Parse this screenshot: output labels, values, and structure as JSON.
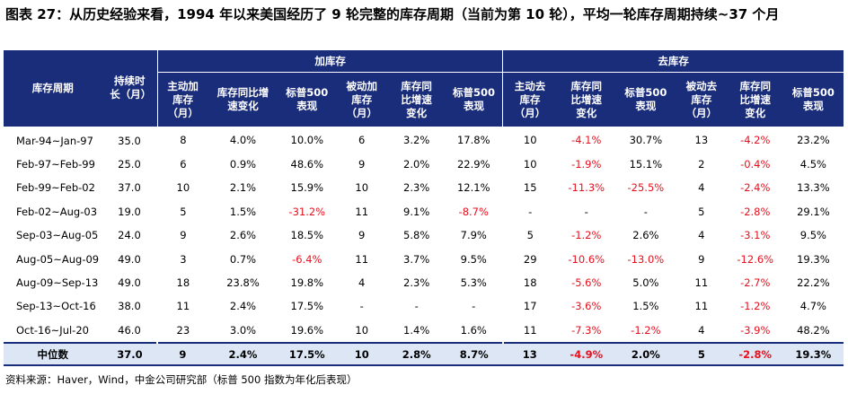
{
  "title": "图表 27：从历史经验来看，1994 年以来美国经历了 9 轮完整的库存周期（当前为第 10 轮），平均一轮库存周期持续~37 个月",
  "table": {
    "group_headers": {
      "add_inventory": "加库存",
      "de_inventory": "去库存"
    },
    "columns": {
      "period": "库存周期",
      "duration": "持续时长（月）",
      "active_add": "主动加库存（月）",
      "add_yoy": "库存同比增速变化",
      "add_sp1": "标普500表现",
      "passive_add": "被动加库存（月）",
      "padd_yoy": "库存同比增速变化",
      "add_sp2": "标普500表现",
      "active_de": "主动去库存（月）",
      "de_yoy": "库存同比增速变化",
      "de_sp1": "标普500表现",
      "passive_de": "被动去库存（月）",
      "pde_yoy": "库存同比增速变化",
      "de_sp2": "标普500表现"
    },
    "rows": [
      [
        "Mar-94~Jan-97",
        "35.0",
        "8",
        "4.0%",
        "10.0%",
        "6",
        "3.2%",
        "17.8%",
        "10",
        "-4.1%",
        "30.7%",
        "13",
        "-4.2%",
        "23.2%"
      ],
      [
        "Feb-97~Feb-99",
        "25.0",
        "6",
        "0.9%",
        "48.6%",
        "9",
        "2.0%",
        "22.9%",
        "10",
        "-1.9%",
        "15.1%",
        "2",
        "-0.4%",
        "4.5%"
      ],
      [
        "Feb-99~Feb-02",
        "37.0",
        "10",
        "2.1%",
        "15.9%",
        "10",
        "2.3%",
        "12.1%",
        "15",
        "-11.3%",
        "-25.5%",
        "4",
        "-2.4%",
        "13.3%"
      ],
      [
        "Feb-02~Aug-03",
        "19.0",
        "5",
        "1.5%",
        "-31.2%",
        "11",
        "9.1%",
        "-8.7%",
        "-",
        "-",
        "-",
        "5",
        "-2.8%",
        "29.1%"
      ],
      [
        "Sep-03~Aug-05",
        "24.0",
        "9",
        "2.6%",
        "18.5%",
        "9",
        "5.8%",
        "7.9%",
        "5",
        "-1.2%",
        "2.6%",
        "4",
        "-3.1%",
        "9.5%"
      ],
      [
        "Aug-05~Aug-09",
        "49.0",
        "3",
        "0.7%",
        "-6.4%",
        "11",
        "3.7%",
        "9.5%",
        "29",
        "-10.6%",
        "-13.0%",
        "9",
        "-12.6%",
        "19.3%"
      ],
      [
        "Aug-09~Sep-13",
        "49.0",
        "18",
        "23.8%",
        "19.8%",
        "4",
        "2.3%",
        "5.3%",
        "18",
        "-5.6%",
        "5.0%",
        "11",
        "-2.7%",
        "22.2%"
      ],
      [
        "Sep-13~Oct-16",
        "38.0",
        "11",
        "2.4%",
        "17.5%",
        "-",
        "-",
        "-",
        "17",
        "-3.6%",
        "1.5%",
        "11",
        "-1.2%",
        "4.7%"
      ],
      [
        "Oct-16~Jul-20",
        "46.0",
        "23",
        "3.0%",
        "19.6%",
        "10",
        "1.4%",
        "1.6%",
        "11",
        "-7.3%",
        "-1.2%",
        "4",
        "-3.9%",
        "48.2%"
      ]
    ],
    "median_row": [
      "中位数",
      "37.0",
      "9",
      "2.4%",
      "17.5%",
      "10",
      "2.8%",
      "8.7%",
      "13",
      "-4.9%",
      "2.0%",
      "5",
      "-2.8%",
      "19.3%"
    ]
  },
  "source": "资料来源：Haver，Wind，中金公司研究部（标普 500 指数为年化后表现）",
  "colors": {
    "header_bg": "#1a2d7a",
    "median_bg": "#dce6f4",
    "negative": "#e8101e"
  }
}
